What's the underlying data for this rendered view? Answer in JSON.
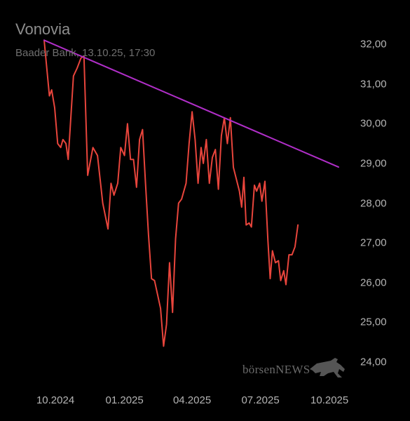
{
  "header": {
    "title": "Vonovia",
    "subtitle": "Baader Bank, 13.10.25, 17:30"
  },
  "watermark": {
    "brand_part1": "börsen",
    "brand_part2": "NEWS",
    "logo_icon": "bull-icon"
  },
  "colors": {
    "price_line": "#e8453c",
    "trend_line": "#b02ec8",
    "background": "#000000",
    "text": "#b4b4b4"
  },
  "chart_data": {
    "type": "line",
    "title": "Vonovia",
    "subtitle": "Baader Bank, 13.10.25, 17:30",
    "ylim": [
      24.0,
      32.0
    ],
    "xlim": [
      "2024-09-16",
      "2025-10-13"
    ],
    "y_ticks": [
      "32,00",
      "31,00",
      "30,00",
      "29,00",
      "28,00",
      "27,00",
      "26,00",
      "25,00",
      "24,00"
    ],
    "x_ticks": [
      {
        "date": "2024-10-01",
        "label": "10.2024"
      },
      {
        "date": "2025-01-01",
        "label": "01.2025"
      },
      {
        "date": "2025-04-01",
        "label": "04.2025"
      },
      {
        "date": "2025-07-01",
        "label": "07.2025"
      },
      {
        "date": "2025-10-01",
        "label": "10.2025"
      }
    ],
    "grid": false,
    "series": [
      {
        "points": [
          [
            "2024-09-16",
            32.1
          ],
          [
            "2024-09-19",
            31.5
          ],
          [
            "2024-09-23",
            30.7
          ],
          [
            "2024-09-26",
            30.85
          ],
          [
            "2024-09-30",
            30.4
          ],
          [
            "2024-10-04",
            29.5
          ],
          [
            "2024-10-08",
            29.4
          ],
          [
            "2024-10-11",
            29.6
          ],
          [
            "2024-10-15",
            29.5
          ],
          [
            "2024-10-18",
            29.1
          ],
          [
            "2024-10-25",
            31.2
          ],
          [
            "2024-10-30",
            31.4
          ],
          [
            "2024-11-04",
            31.65
          ],
          [
            "2024-11-08",
            31.7
          ],
          [
            "2024-11-13",
            28.7
          ],
          [
            "2024-11-20",
            29.4
          ],
          [
            "2024-11-26",
            29.2
          ],
          [
            "2024-12-03",
            28.0
          ],
          [
            "2024-12-10",
            27.35
          ],
          [
            "2024-12-14",
            28.5
          ],
          [
            "2024-12-18",
            28.2
          ],
          [
            "2024-12-23",
            28.5
          ],
          [
            "2024-12-27",
            29.4
          ],
          [
            "2025-01-01",
            29.2
          ],
          [
            "2025-01-05",
            30.0
          ],
          [
            "2025-01-09",
            29.1
          ],
          [
            "2025-01-13",
            29.1
          ],
          [
            "2025-01-17",
            28.4
          ],
          [
            "2025-01-21",
            29.6
          ],
          [
            "2025-01-25",
            29.85
          ],
          [
            "2025-01-29",
            28.5
          ],
          [
            "2025-02-02",
            27.2
          ],
          [
            "2025-02-06",
            26.1
          ],
          [
            "2025-02-10",
            26.05
          ],
          [
            "2025-02-14",
            25.7
          ],
          [
            "2025-02-18",
            25.35
          ],
          [
            "2025-02-22",
            24.4
          ],
          [
            "2025-02-26",
            24.95
          ],
          [
            "2025-03-02",
            26.5
          ],
          [
            "2025-03-06",
            25.25
          ],
          [
            "2025-03-10",
            27.1
          ],
          [
            "2025-03-14",
            28.0
          ],
          [
            "2025-03-18",
            28.1
          ],
          [
            "2025-03-24",
            28.5
          ],
          [
            "2025-03-28",
            29.5
          ],
          [
            "2025-04-01",
            30.3
          ],
          [
            "2025-04-05",
            29.6
          ],
          [
            "2025-04-09",
            28.5
          ],
          [
            "2025-04-13",
            29.4
          ],
          [
            "2025-04-16",
            29.0
          ],
          [
            "2025-04-20",
            29.6
          ],
          [
            "2025-04-24",
            28.5
          ],
          [
            "2025-04-28",
            29.15
          ],
          [
            "2025-05-02",
            29.35
          ],
          [
            "2025-05-06",
            28.35
          ],
          [
            "2025-05-10",
            29.7
          ],
          [
            "2025-05-14",
            30.15
          ],
          [
            "2025-05-18",
            29.5
          ],
          [
            "2025-05-22",
            30.15
          ],
          [
            "2025-05-26",
            28.9
          ],
          [
            "2025-05-30",
            28.6
          ],
          [
            "2025-06-03",
            28.3
          ],
          [
            "2025-06-06",
            27.9
          ],
          [
            "2025-06-09",
            28.65
          ],
          [
            "2025-06-12",
            27.45
          ],
          [
            "2025-06-16",
            27.5
          ],
          [
            "2025-06-19",
            27.4
          ],
          [
            "2025-06-23",
            28.45
          ],
          [
            "2025-06-26",
            28.3
          ],
          [
            "2025-06-30",
            28.5
          ],
          [
            "2025-07-03",
            28.05
          ],
          [
            "2025-07-07",
            28.55
          ],
          [
            "2025-07-11",
            27.05
          ],
          [
            "2025-07-14",
            26.1
          ],
          [
            "2025-07-17",
            26.8
          ],
          [
            "2025-07-21",
            26.5
          ],
          [
            "2025-07-25",
            26.55
          ],
          [
            "2025-07-28",
            26.05
          ],
          [
            "2025-08-01",
            26.3
          ],
          [
            "2025-08-04",
            25.95
          ],
          [
            "2025-08-08",
            26.7
          ],
          [
            "2025-08-12",
            26.7
          ],
          [
            "2025-08-16",
            26.9
          ],
          [
            "2025-08-20",
            27.45
          ]
        ]
      },
      {
        "points": [
          [
            "2024-09-16",
            32.1
          ],
          [
            "2025-09-01",
            29.25
          ]
        ]
      }
    ]
  }
}
